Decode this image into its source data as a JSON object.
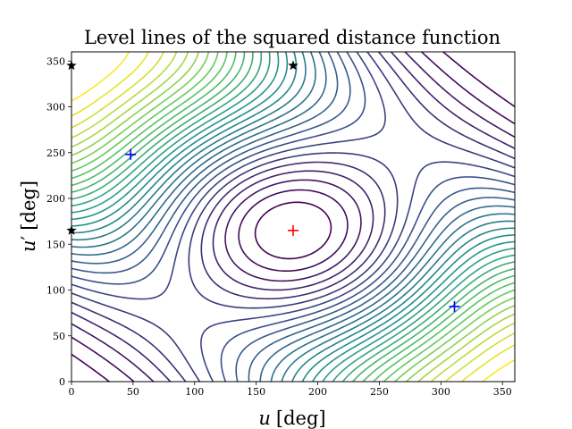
{
  "chart_data": {
    "type": "contour",
    "title": "Level lines of the squared distance function",
    "xlabel": {
      "var": "u",
      "unit": "[deg]"
    },
    "ylabel": {
      "var": "u",
      "prime": "′",
      "unit": "[deg]"
    },
    "xlim": [
      0,
      360
    ],
    "ylim": [
      0,
      360
    ],
    "xticks": [
      "0",
      "50",
      "100",
      "150",
      "200",
      "250",
      "300",
      "350"
    ],
    "yticks": [
      "0",
      "50",
      "100",
      "150",
      "200",
      "250",
      "300",
      "350"
    ],
    "colormap": [
      "#440154",
      "#3b528b",
      "#21918c",
      "#5ec962",
      "#fde725"
    ],
    "grid": false,
    "num_levels": 30,
    "maximum": {
      "u": 180,
      "u_prime": 165,
      "marker": "plus",
      "color": "#ff0000"
    },
    "minima": [
      {
        "u": 48,
        "u_prime": 248,
        "marker": "plus",
        "color": "#0000ff"
      },
      {
        "u": 311,
        "u_prime": 82,
        "marker": "plus",
        "color": "#0000ff"
      }
    ],
    "saddles": [
      {
        "u": 0,
        "u_prime": 345,
        "marker": "star",
        "color": "#000000"
      },
      {
        "u": 180,
        "u_prime": 345,
        "marker": "star",
        "color": "#000000"
      },
      {
        "u": 0,
        "u_prime": 165,
        "marker": "star",
        "color": "#000000"
      }
    ]
  }
}
